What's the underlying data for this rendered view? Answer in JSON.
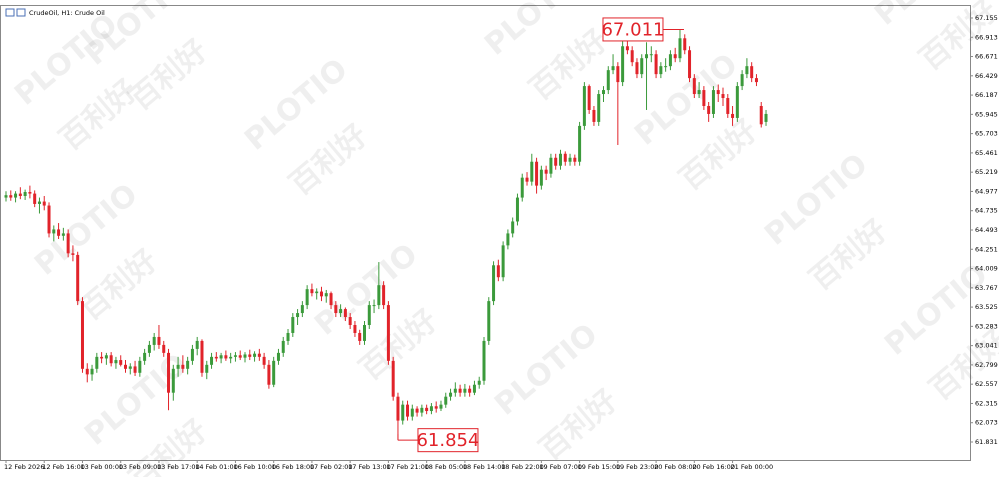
{
  "chart_data": {
    "type": "candlestick",
    "title": "CrudeOil, H1:  Crude Oil",
    "watermark": {
      "brand": "PLOTIO",
      "name": "百利好"
    },
    "categories": [
      "12 Feb 2026",
      null,
      null,
      null,
      null,
      null,
      null,
      null,
      "12 Feb 16:00",
      null,
      null,
      null,
      null,
      null,
      null,
      null,
      "13 Feb 00:00",
      null,
      null,
      null,
      null,
      null,
      null,
      null,
      "13 Feb 09:00",
      null,
      null,
      null,
      null,
      null,
      null,
      null,
      "13 Feb 17:00",
      null,
      null,
      null,
      null,
      null,
      null,
      null,
      "14 Feb 01:00",
      null,
      null,
      null,
      null,
      null,
      null,
      null,
      "16 Feb 10:00",
      null,
      null,
      null,
      null,
      null,
      null,
      null,
      "16 Feb 18:00",
      null,
      null,
      null,
      null,
      null,
      null,
      null,
      "17 Feb 02:00",
      null,
      null,
      null,
      null,
      null,
      null,
      null,
      "17 Feb 13:00",
      null,
      null,
      null,
      null,
      null,
      null,
      null,
      "17 Feb 21:00",
      null,
      null,
      null,
      null,
      null,
      null,
      null,
      "18 Feb 05:00",
      null,
      null,
      null,
      null,
      null,
      null,
      null,
      "18 Feb 14:00",
      null,
      null,
      null,
      null,
      null,
      null,
      null,
      "18 Feb 22:00",
      null,
      null,
      null,
      null,
      null,
      null,
      null,
      "19 Feb 07:00",
      null,
      null,
      null,
      null,
      null,
      null,
      null,
      "19 Feb 15:00",
      null,
      null,
      null,
      null,
      null,
      null,
      null,
      "19 Feb 23:00",
      null,
      null,
      null,
      null,
      null,
      null,
      null,
      "20 Feb 08:00",
      null,
      null,
      null,
      null,
      null,
      null,
      null,
      "20 Feb 16:00",
      null,
      null,
      null,
      null,
      null,
      null,
      null,
      "21 Feb 00:00",
      null,
      null,
      null,
      null,
      null,
      null,
      null
    ],
    "open": [
      64.9,
      64.93,
      64.9,
      64.95,
      64.92,
      64.97,
      64.95,
      64.82,
      64.85,
      64.8,
      64.45,
      64.5,
      64.42,
      64.45,
      64.2,
      64.18,
      63.6,
      62.75,
      62.68,
      62.75,
      62.9,
      62.88,
      62.92,
      62.82,
      62.86,
      62.8,
      62.75,
      62.78,
      62.7,
      62.85,
      62.95,
      63.05,
      63.15,
      63.05,
      62.95,
      62.45,
      62.75,
      62.8,
      62.75,
      62.85,
      63.0,
      63.1,
      62.7,
      62.8,
      62.9,
      62.88,
      62.92,
      62.88,
      62.9,
      62.92,
      62.89,
      62.93,
      62.9,
      62.94,
      62.9,
      62.8,
      62.55,
      62.85,
      62.95,
      63.1,
      63.2,
      63.4,
      63.45,
      63.55,
      63.75,
      63.7,
      63.72,
      63.66,
      63.7,
      63.55,
      63.45,
      63.5,
      63.4,
      63.3,
      63.2,
      63.1,
      63.3,
      63.55,
      63.55,
      63.8,
      63.55,
      62.85,
      62.4,
      62.1,
      62.3,
      62.15,
      62.25,
      62.2,
      62.26,
      62.22,
      62.28,
      62.25,
      62.3,
      62.4,
      62.45,
      62.5,
      62.45,
      62.5,
      62.45,
      62.55,
      62.6,
      63.1,
      63.6,
      64.05,
      63.9,
      64.3,
      64.45,
      64.6,
      64.9,
      65.15,
      65.1,
      65.35,
      65.05,
      65.25,
      65.2,
      65.4,
      65.3,
      65.45,
      65.35,
      65.4,
      65.35,
      65.8,
      66.3,
      66.0,
      65.85,
      66.2,
      66.25,
      66.5,
      66.55,
      66.35,
      66.8,
      66.75,
      66.6,
      66.45,
      66.65,
      66.7,
      66.7,
      66.45,
      66.55,
      66.55,
      66.7,
      66.65,
      66.9,
      66.75,
      66.4,
      66.2,
      66.25,
      66.05,
      65.95,
      66.25,
      66.2,
      66.15,
      65.95,
      65.9,
      66.3,
      66.45,
      66.55,
      66.4,
      66.05,
      65.85
    ],
    "high": [
      64.98,
      64.99,
      64.98,
      65.03,
      65.0,
      65.05,
      64.99,
      64.9,
      64.92,
      64.84,
      64.55,
      64.58,
      64.52,
      64.5,
      64.3,
      64.22,
      63.65,
      62.82,
      62.8,
      62.95,
      62.96,
      62.95,
      62.96,
      62.9,
      62.92,
      62.86,
      62.82,
      62.85,
      62.9,
      63.0,
      63.1,
      63.2,
      63.3,
      63.1,
      63.0,
      62.8,
      62.9,
      62.92,
      62.9,
      63.05,
      63.15,
      63.12,
      62.85,
      62.95,
      62.96,
      62.95,
      62.98,
      62.95,
      62.96,
      62.98,
      62.96,
      62.99,
      62.97,
      63.0,
      62.95,
      62.86,
      62.9,
      63.0,
      63.15,
      63.25,
      63.45,
      63.5,
      63.6,
      63.8,
      63.82,
      63.76,
      63.78,
      63.74,
      63.72,
      63.6,
      63.56,
      63.52,
      63.45,
      63.35,
      63.24,
      63.35,
      63.6,
      63.62,
      64.09,
      63.85,
      63.6,
      62.9,
      62.45,
      62.35,
      62.35,
      62.3,
      62.28,
      62.3,
      62.3,
      62.32,
      62.34,
      62.35,
      62.45,
      62.5,
      62.58,
      62.55,
      62.56,
      62.54,
      62.6,
      62.65,
      63.15,
      63.65,
      64.1,
      64.12,
      64.35,
      64.5,
      64.65,
      64.95,
      65.2,
      65.22,
      65.45,
      65.4,
      65.3,
      65.3,
      65.45,
      65.45,
      65.5,
      65.48,
      65.45,
      65.44,
      65.85,
      66.35,
      66.32,
      66.05,
      66.25,
      66.3,
      66.55,
      66.7,
      66.6,
      66.95,
      66.9,
      66.8,
      66.65,
      66.7,
      66.85,
      66.8,
      66.75,
      66.6,
      66.65,
      66.75,
      66.78,
      67.011,
      66.95,
      66.8,
      66.45,
      66.35,
      66.3,
      66.1,
      66.3,
      66.32,
      66.28,
      66.2,
      66.05,
      66.35,
      66.5,
      66.65,
      66.6,
      66.45,
      66.1,
      66.0
    ],
    "low": [
      64.85,
      64.86,
      64.84,
      64.88,
      64.87,
      64.89,
      64.78,
      64.7,
      64.74,
      64.4,
      64.35,
      64.38,
      64.36,
      64.15,
      64.1,
      63.55,
      62.7,
      62.58,
      62.6,
      62.7,
      62.82,
      62.8,
      62.78,
      62.75,
      62.78,
      62.7,
      62.68,
      62.66,
      62.65,
      62.8,
      62.9,
      62.98,
      63.0,
      62.9,
      62.23,
      62.35,
      62.65,
      62.7,
      62.68,
      62.8,
      62.92,
      62.65,
      62.62,
      62.75,
      62.84,
      62.82,
      62.85,
      62.82,
      62.84,
      62.86,
      62.83,
      62.86,
      62.84,
      62.85,
      62.75,
      62.5,
      62.52,
      62.8,
      62.9,
      63.05,
      63.15,
      63.3,
      63.4,
      63.5,
      63.66,
      63.62,
      63.6,
      63.58,
      63.5,
      63.4,
      63.4,
      63.35,
      63.25,
      63.15,
      63.05,
      63.05,
      63.25,
      63.45,
      63.5,
      63.5,
      62.8,
      62.35,
      61.854,
      62.05,
      62.1,
      62.1,
      62.15,
      62.15,
      62.18,
      62.18,
      62.2,
      62.22,
      62.26,
      62.35,
      62.4,
      62.4,
      62.4,
      62.4,
      62.42,
      62.5,
      62.55,
      63.05,
      63.55,
      63.85,
      63.85,
      64.25,
      64.4,
      64.55,
      64.85,
      65.05,
      65.05,
      64.95,
      65.0,
      65.12,
      65.15,
      65.25,
      65.25,
      65.3,
      65.3,
      65.3,
      65.3,
      65.75,
      65.95,
      65.8,
      65.8,
      66.1,
      66.2,
      66.45,
      65.56,
      66.3,
      66.7,
      66.55,
      66.4,
      66.4,
      66.0,
      66.6,
      66.4,
      66.4,
      66.48,
      66.5,
      66.6,
      66.6,
      66.7,
      66.35,
      66.15,
      66.15,
      66.0,
      65.85,
      65.9,
      66.1,
      66.05,
      65.9,
      65.8,
      65.85,
      66.25,
      66.4,
      66.35,
      66.3,
      65.78,
      65.8
    ],
    "close": [
      64.93,
      64.9,
      64.95,
      64.92,
      64.97,
      64.95,
      64.82,
      64.85,
      64.8,
      64.45,
      64.5,
      64.42,
      64.45,
      64.2,
      64.18,
      63.6,
      62.75,
      62.68,
      62.75,
      62.9,
      62.88,
      62.92,
      62.82,
      62.86,
      62.8,
      62.75,
      62.78,
      62.7,
      62.85,
      62.95,
      63.05,
      63.15,
      63.05,
      62.95,
      62.45,
      62.75,
      62.8,
      62.75,
      62.85,
      63.0,
      63.1,
      62.7,
      62.8,
      62.9,
      62.88,
      62.92,
      62.88,
      62.9,
      62.92,
      62.89,
      62.93,
      62.9,
      62.94,
      62.9,
      62.8,
      62.55,
      62.85,
      62.95,
      63.1,
      63.2,
      63.4,
      63.45,
      63.55,
      63.75,
      63.7,
      63.72,
      63.66,
      63.7,
      63.55,
      63.45,
      63.5,
      63.4,
      63.3,
      63.2,
      63.1,
      63.3,
      63.55,
      63.55,
      63.8,
      63.55,
      62.85,
      62.4,
      62.1,
      62.3,
      62.15,
      62.25,
      62.2,
      62.26,
      62.22,
      62.28,
      62.25,
      62.3,
      62.4,
      62.45,
      62.5,
      62.45,
      62.5,
      62.45,
      62.55,
      62.6,
      63.1,
      63.6,
      64.05,
      63.9,
      64.3,
      64.45,
      64.6,
      64.9,
      65.15,
      65.1,
      65.35,
      65.05,
      65.25,
      65.2,
      65.4,
      65.3,
      65.45,
      65.35,
      65.4,
      65.35,
      65.8,
      66.3,
      66.0,
      65.85,
      66.2,
      66.25,
      66.5,
      66.55,
      66.35,
      66.8,
      66.75,
      66.6,
      66.45,
      66.65,
      66.7,
      66.7,
      66.45,
      66.55,
      66.55,
      66.7,
      66.65,
      66.9,
      66.75,
      66.4,
      66.2,
      66.25,
      66.05,
      65.95,
      66.25,
      66.2,
      66.15,
      65.95,
      65.9,
      66.3,
      66.45,
      66.55,
      66.4,
      66.35,
      65.82,
      65.95
    ],
    "up_color": "#3b9a3b",
    "down_color": "#e1232a",
    "annotations": [
      67.011,
      61.854
    ],
    "annotation_color": "#e1232a",
    "ylim": [
      61.605,
      67.318
    ],
    "yticks": [
      67.155,
      66.913,
      66.671,
      66.429,
      66.187,
      65.945,
      65.703,
      65.461,
      65.219,
      64.977,
      64.735,
      64.493,
      64.251,
      64.009,
      63.767,
      63.525,
      63.283,
      63.041,
      62.799,
      62.557,
      62.315,
      62.073,
      61.831
    ],
    "grid": false
  }
}
